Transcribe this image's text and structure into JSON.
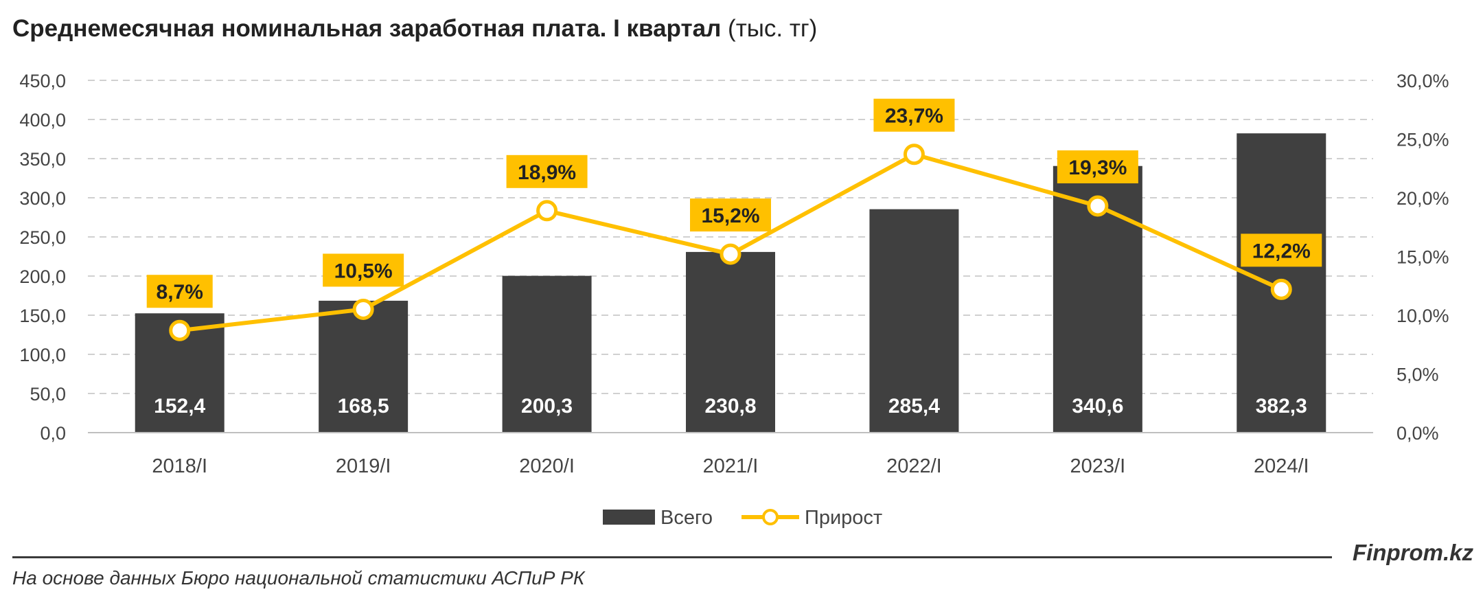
{
  "header": {
    "title": "Среднемесячная номинальная заработная плата. I квартал",
    "unit": "(тыс. тг)"
  },
  "chart_data": {
    "type": "bar",
    "categories": [
      "2018/I",
      "2019/I",
      "2020/I",
      "2021/I",
      "2022/I",
      "2023/I",
      "2024/I"
    ],
    "series": [
      {
        "name": "Всего",
        "type": "bar",
        "axis": "left",
        "values": [
          152.4,
          168.5,
          200.3,
          230.8,
          285.4,
          340.6,
          382.3
        ],
        "labels": [
          "152,4",
          "168,5",
          "200,3",
          "230,8",
          "285,4",
          "340,6",
          "382,3"
        ]
      },
      {
        "name": "Прирост",
        "type": "line",
        "axis": "right",
        "values": [
          8.7,
          10.5,
          18.9,
          15.2,
          23.7,
          19.3,
          12.2
        ],
        "labels": [
          "8,7%",
          "10,5%",
          "18,9%",
          "15,2%",
          "23,7%",
          "19,3%",
          "12,2%"
        ]
      }
    ],
    "y_left": {
      "min": 0,
      "max": 450,
      "step": 50,
      "ticks": [
        "0,0",
        "50,0",
        "100,0",
        "150,0",
        "200,0",
        "250,0",
        "300,0",
        "350,0",
        "400,0",
        "450,0"
      ]
    },
    "y_right": {
      "min": 0,
      "max": 30,
      "step": 5,
      "ticks": [
        "0,0%",
        "5,0%",
        "10,0%",
        "15,0%",
        "20,0%",
        "25,0%",
        "30,0%"
      ]
    },
    "grid": true,
    "legend_position": "bottom",
    "colors": {
      "bar": "#404040",
      "line": "#FFC000",
      "label_bg": "#FFC000",
      "grid": "#d0d0d0"
    }
  },
  "footer": {
    "brand": "Finprom.kz",
    "source": "На основе данных Бюро национальной статистики АСПиР РК"
  }
}
